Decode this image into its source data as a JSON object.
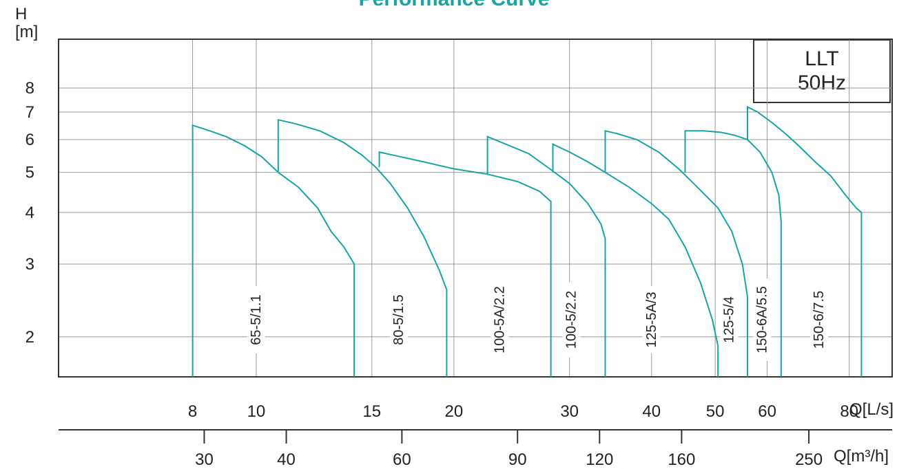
{
  "chart_data": {
    "type": "line",
    "title": "Performance Curve",
    "ylabel": "H\n[m]",
    "xlabel": "Q[L/s]",
    "x2label": "Q[m³/h]",
    "legend_box": {
      "line1": "LLT",
      "line2": "50Hz"
    },
    "y_scale": "log",
    "x_scale": "log",
    "ylim": [
      1.6,
      10.5
    ],
    "xlim": [
      5.0,
      93.0
    ],
    "y_ticks": [
      2,
      3,
      4,
      5,
      6,
      7,
      8
    ],
    "x_ticks": [
      8,
      10,
      15,
      20,
      30,
      40,
      50,
      60,
      80
    ],
    "x2_ticks": [
      30,
      40,
      60,
      90,
      120,
      160,
      250
    ],
    "grid": true,
    "line_color": "#1aa3a3",
    "title_color": "#1aa3a3",
    "series": [
      {
        "name": "65-5/1.1",
        "label_x": 10.0,
        "points": [
          [
            8,
            1.6
          ],
          [
            8,
            6.5
          ],
          [
            8.5,
            6.3
          ],
          [
            9.0,
            6.1
          ],
          [
            9.6,
            5.8
          ],
          [
            10.2,
            5.45
          ],
          [
            10.8,
            5.0
          ],
          [
            11.6,
            4.6
          ],
          [
            12.4,
            4.1
          ],
          [
            13.0,
            3.6
          ],
          [
            13.6,
            3.3
          ],
          [
            14.1,
            3.0
          ],
          [
            14.1,
            1.6
          ]
        ]
      },
      {
        "name": "80-5/1.5",
        "label_x": 16.5,
        "points": [
          [
            10.8,
            5.0
          ],
          [
            10.8,
            6.7
          ],
          [
            11.5,
            6.55
          ],
          [
            12.5,
            6.3
          ],
          [
            13.6,
            5.9
          ],
          [
            14.5,
            5.5
          ],
          [
            15.2,
            5.15
          ],
          [
            16.0,
            4.7
          ],
          [
            17.0,
            4.1
          ],
          [
            18.0,
            3.5
          ],
          [
            19.0,
            2.9
          ],
          [
            19.5,
            2.6
          ],
          [
            19.5,
            1.6
          ]
        ]
      },
      {
        "name": "100-5A/2.2",
        "label_x": 23.5,
        "points": [
          [
            15.4,
            5.15
          ],
          [
            15.4,
            5.6
          ],
          [
            16.2,
            5.5
          ],
          [
            18.0,
            5.3
          ],
          [
            20.0,
            5.1
          ],
          [
            22.5,
            4.95
          ],
          [
            25.0,
            4.75
          ],
          [
            27.0,
            4.5
          ],
          [
            28.1,
            4.25
          ],
          [
            28.1,
            1.6
          ]
        ]
      },
      {
        "name": "100-5/2.2",
        "label_x": 30.2,
        "points": [
          [
            22.5,
            4.95
          ],
          [
            22.5,
            6.1
          ],
          [
            24.0,
            5.85
          ],
          [
            26.0,
            5.55
          ],
          [
            28.0,
            5.1
          ],
          [
            30.0,
            4.7
          ],
          [
            32.0,
            4.2
          ],
          [
            33.5,
            3.75
          ],
          [
            34.0,
            3.45
          ],
          [
            34.0,
            1.6
          ]
        ]
      },
      {
        "name": "125-5A/3",
        "label_x": 40.0,
        "points": [
          [
            28.3,
            5.0
          ],
          [
            28.3,
            5.85
          ],
          [
            30.0,
            5.6
          ],
          [
            32.0,
            5.3
          ],
          [
            34.0,
            5.0
          ],
          [
            37.0,
            4.6
          ],
          [
            40.0,
            4.2
          ],
          [
            42.5,
            3.85
          ],
          [
            45.0,
            3.3
          ],
          [
            47.5,
            2.7
          ],
          [
            49.5,
            2.2
          ],
          [
            50.5,
            1.9
          ],
          [
            50.5,
            1.6
          ]
        ]
      },
      {
        "name": "125-5/4",
        "label_x": 52.5,
        "points": [
          [
            34.0,
            5.0
          ],
          [
            34.0,
            6.3
          ],
          [
            35.5,
            6.2
          ],
          [
            38.0,
            6.0
          ],
          [
            41.0,
            5.6
          ],
          [
            44.0,
            5.1
          ],
          [
            47.0,
            4.6
          ],
          [
            50.5,
            4.1
          ],
          [
            53.0,
            3.6
          ],
          [
            55.0,
            3.0
          ],
          [
            56.0,
            2.5
          ],
          [
            56.0,
            1.6
          ]
        ]
      },
      {
        "name": "150-6A/5.5",
        "label_x": 59.0,
        "points": [
          [
            45.0,
            5.0
          ],
          [
            45.0,
            6.3
          ],
          [
            48.0,
            6.3
          ],
          [
            51.0,
            6.25
          ],
          [
            53.5,
            6.15
          ],
          [
            56.0,
            6.0
          ],
          [
            58.5,
            5.6
          ],
          [
            61.0,
            5.0
          ],
          [
            62.5,
            4.4
          ],
          [
            63.0,
            3.8
          ],
          [
            63.0,
            1.6
          ]
        ]
      },
      {
        "name": "150-6/7.5",
        "label_x": 72.0,
        "points": [
          [
            56.0,
            6.0
          ],
          [
            56.0,
            7.2
          ],
          [
            58.0,
            7.0
          ],
          [
            61.0,
            6.6
          ],
          [
            64.0,
            6.2
          ],
          [
            67.0,
            5.8
          ],
          [
            71.0,
            5.3
          ],
          [
            75.0,
            4.9
          ],
          [
            79.0,
            4.4
          ],
          [
            82.0,
            4.1
          ],
          [
            83.5,
            4.0
          ],
          [
            83.5,
            1.6
          ]
        ]
      }
    ]
  }
}
